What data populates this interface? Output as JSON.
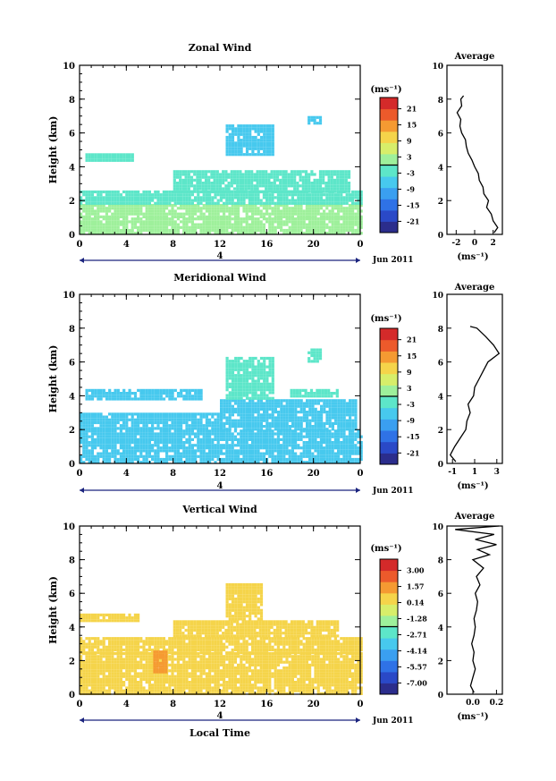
{
  "chart_data": [
    {
      "type": "heatmap",
      "title": "Zonal Wind",
      "xlabel": "",
      "ylabel": "Height (km)",
      "xlim": [
        0,
        24
      ],
      "ylim": [
        0,
        10
      ],
      "x_ticks": [
        "0",
        "4",
        "8",
        "12",
        "16",
        "20",
        "0"
      ],
      "y_ticks": [
        "0",
        "2",
        "4",
        "6",
        "8",
        "10"
      ],
      "date_axis": {
        "label": "4",
        "suffix": "Jun 2011"
      },
      "colorbar": {
        "unit": "(ms⁻¹)",
        "labels": [
          "21",
          "15",
          "9",
          "3",
          "-3",
          "-9",
          "-15",
          "-21"
        ],
        "range": [
          -24,
          24
        ]
      },
      "field": [
        {
          "x": [
            0,
            24
          ],
          "y": [
            0.1,
            1.0
          ],
          "value": 1
        },
        {
          "x": [
            0,
            24
          ],
          "y": [
            1.0,
            1.8
          ],
          "value": 0
        },
        {
          "x": [
            0,
            24
          ],
          "y": [
            1.8,
            2.6
          ],
          "value": -2
        },
        {
          "x": [
            0.5,
            4.5
          ],
          "y": [
            4.3,
            4.8
          ],
          "value": -4
        },
        {
          "x": [
            8,
            23
          ],
          "y": [
            2.6,
            3.8
          ],
          "value": -3
        },
        {
          "x": [
            12.5,
            16.5
          ],
          "y": [
            4.8,
            6.5
          ],
          "value": -8
        },
        {
          "x": [
            19.5,
            20.5
          ],
          "y": [
            6.5,
            7.0
          ],
          "value": -6
        }
      ],
      "average": {
        "xlabel": "(ms⁻¹)",
        "title": "Average",
        "xlim": [
          -3,
          3
        ],
        "x_ticks": [
          "-2",
          "0",
          "2"
        ],
        "y_ticks": [
          "0",
          "2",
          "4",
          "6",
          "8",
          "10"
        ],
        "profile": [
          {
            "x": 2.1,
            "y": 0.1
          },
          {
            "x": 2.5,
            "y": 0.4
          },
          {
            "x": 2.0,
            "y": 0.8
          },
          {
            "x": 1.8,
            "y": 1.2
          },
          {
            "x": 1.3,
            "y": 1.6
          },
          {
            "x": 1.5,
            "y": 2.0
          },
          {
            "x": 1.0,
            "y": 2.4
          },
          {
            "x": 0.9,
            "y": 2.8
          },
          {
            "x": 0.5,
            "y": 3.2
          },
          {
            "x": 0.4,
            "y": 3.6
          },
          {
            "x": 0.0,
            "y": 4.0
          },
          {
            "x": -0.3,
            "y": 4.4
          },
          {
            "x": -0.7,
            "y": 4.8
          },
          {
            "x": -0.9,
            "y": 5.2
          },
          {
            "x": -1.0,
            "y": 5.6
          },
          {
            "x": -1.4,
            "y": 6.0
          },
          {
            "x": -1.6,
            "y": 6.4
          },
          {
            "x": -1.5,
            "y": 6.8
          },
          {
            "x": -1.9,
            "y": 7.2
          },
          {
            "x": -1.4,
            "y": 7.6
          },
          {
            "x": -1.5,
            "y": 8.0
          },
          {
            "x": -1.2,
            "y": 8.2
          }
        ]
      }
    },
    {
      "type": "heatmap",
      "title": "Meridional Wind",
      "xlabel": "",
      "ylabel": "Height (km)",
      "xlim": [
        0,
        24
      ],
      "ylim": [
        0,
        10
      ],
      "x_ticks": [
        "0",
        "4",
        "8",
        "12",
        "16",
        "20",
        "0"
      ],
      "y_ticks": [
        "0",
        "2",
        "4",
        "6",
        "8",
        "10"
      ],
      "date_axis": {
        "label": "4",
        "suffix": "Jun 2011"
      },
      "colorbar": {
        "unit": "(ms⁻¹)",
        "labels": [
          "21",
          "15",
          "9",
          "3",
          "-3",
          "-9",
          "-15",
          "-21"
        ],
        "range": [
          -24,
          24
        ]
      },
      "field": [
        {
          "x": [
            0,
            24
          ],
          "y": [
            0.1,
            1.0
          ],
          "value": -6
        },
        {
          "x": [
            0,
            24
          ],
          "y": [
            1.0,
            2.0
          ],
          "value": -7
        },
        {
          "x": [
            0,
            12
          ],
          "y": [
            2.0,
            3.0
          ],
          "value": -6
        },
        {
          "x": [
            12,
            23.5
          ],
          "y": [
            2.0,
            3.8
          ],
          "value": -8
        },
        {
          "x": [
            0.5,
            10.5
          ],
          "y": [
            3.8,
            4.4
          ],
          "value": -5
        },
        {
          "x": [
            12.5,
            16.5
          ],
          "y": [
            3.8,
            6.3
          ],
          "value": -4
        },
        {
          "x": [
            18,
            22
          ],
          "y": [
            4.0,
            4.4
          ],
          "value": -1
        },
        {
          "x": [
            19.5,
            20.5
          ],
          "y": [
            6.0,
            6.8
          ],
          "value": -2
        }
      ],
      "average": {
        "xlabel": "(ms⁻¹)",
        "title": "Average",
        "xlim": [
          -1.5,
          3.5
        ],
        "x_ticks": [
          "-1",
          "1",
          "3"
        ],
        "y_ticks": [
          "0",
          "2",
          "4",
          "6",
          "8",
          "10"
        ],
        "profile": [
          {
            "x": -0.7,
            "y": 0.1
          },
          {
            "x": -1.2,
            "y": 0.5
          },
          {
            "x": -0.8,
            "y": 1.0
          },
          {
            "x": -0.3,
            "y": 1.5
          },
          {
            "x": 0.2,
            "y": 2.0
          },
          {
            "x": 0.3,
            "y": 2.5
          },
          {
            "x": 0.6,
            "y": 3.0
          },
          {
            "x": 0.4,
            "y": 3.5
          },
          {
            "x": 0.9,
            "y": 4.0
          },
          {
            "x": 1.0,
            "y": 4.5
          },
          {
            "x": 1.4,
            "y": 5.0
          },
          {
            "x": 1.8,
            "y": 5.5
          },
          {
            "x": 2.2,
            "y": 6.0
          },
          {
            "x": 3.2,
            "y": 6.5
          },
          {
            "x": 2.7,
            "y": 7.0
          },
          {
            "x": 2.0,
            "y": 7.5
          },
          {
            "x": 1.2,
            "y": 8.0
          },
          {
            "x": 0.6,
            "y": 8.1
          }
        ]
      }
    },
    {
      "type": "heatmap",
      "title": "Vertical Wind",
      "xlabel": "Local Time",
      "ylabel": "Height (km)",
      "xlim": [
        0,
        24
      ],
      "ylim": [
        0,
        10
      ],
      "x_ticks": [
        "0",
        "4",
        "8",
        "12",
        "16",
        "20",
        "0"
      ],
      "y_ticks": [
        "0",
        "2",
        "4",
        "6",
        "8",
        "10"
      ],
      "date_axis": {
        "label": "4",
        "suffix": "Jun 2011"
      },
      "colorbar": {
        "unit": "(ms⁻¹)",
        "labels": [
          "3.00",
          "1.57",
          "0.14",
          "-1.28",
          "-2.71",
          "-4.14",
          "-5.57",
          "-7.00"
        ],
        "range": [
          -7.71,
          3.71
        ]
      },
      "field": [
        {
          "x": [
            0,
            24
          ],
          "y": [
            0.1,
            2.5
          ],
          "value": 0.4
        },
        {
          "x": [
            0,
            24
          ],
          "y": [
            2.5,
            3.4
          ],
          "value": 0.2
        },
        {
          "x": [
            8,
            22
          ],
          "y": [
            3.4,
            4.4
          ],
          "value": 0.3
        },
        {
          "x": [
            6.3,
            7.3
          ],
          "y": [
            1.3,
            2.6
          ],
          "value": 1.4
        },
        {
          "x": [
            12.5,
            15.5
          ],
          "y": [
            4.4,
            6.6
          ],
          "value": 0.5
        },
        {
          "x": [
            0,
            5
          ],
          "y": [
            4.4,
            4.8
          ],
          "value": 0.2
        }
      ],
      "average": {
        "xlabel": "(ms⁻¹)",
        "title": "Average",
        "xlim": [
          -0.22,
          0.25
        ],
        "x_ticks": [
          "0.0",
          "0.2"
        ],
        "y_ticks": [
          "0",
          "2",
          "4",
          "6",
          "8",
          "10"
        ],
        "profile": [
          {
            "x": 0.01,
            "y": 0.1
          },
          {
            "x": -0.02,
            "y": 0.5
          },
          {
            "x": 0.0,
            "y": 1.0
          },
          {
            "x": 0.02,
            "y": 1.5
          },
          {
            "x": 0.0,
            "y": 2.0
          },
          {
            "x": 0.01,
            "y": 2.5
          },
          {
            "x": -0.01,
            "y": 3.0
          },
          {
            "x": 0.01,
            "y": 3.5
          },
          {
            "x": 0.02,
            "y": 4.0
          },
          {
            "x": 0.01,
            "y": 4.5
          },
          {
            "x": 0.03,
            "y": 5.0
          },
          {
            "x": 0.04,
            "y": 5.5
          },
          {
            "x": 0.02,
            "y": 6.0
          },
          {
            "x": 0.06,
            "y": 6.5
          },
          {
            "x": 0.03,
            "y": 7.0
          },
          {
            "x": 0.09,
            "y": 7.5
          },
          {
            "x": 0.0,
            "y": 8.0
          },
          {
            "x": 0.14,
            "y": 8.3
          },
          {
            "x": 0.04,
            "y": 8.6
          },
          {
            "x": 0.2,
            "y": 8.9
          },
          {
            "x": 0.02,
            "y": 9.2
          },
          {
            "x": 0.18,
            "y": 9.5
          },
          {
            "x": -0.15,
            "y": 9.8
          },
          {
            "x": 0.22,
            "y": 10.0
          }
        ]
      }
    }
  ]
}
